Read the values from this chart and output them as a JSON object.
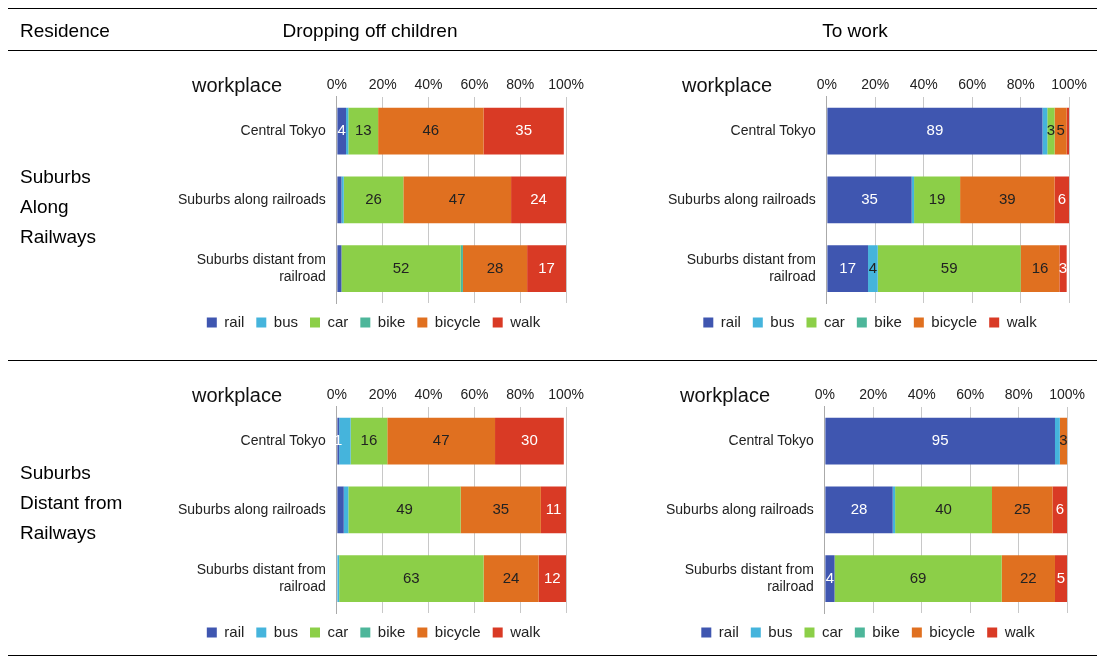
{
  "chart_data": [
    {
      "type": "other",
      "annotations": [
        "Residence",
        "Dropping off children",
        "To work",
        "Suburbs Along Railways",
        "Suburbs Distant from Railways"
      ]
    },
    {
      "type": "bar",
      "orientation": "horizontal",
      "stacked": true,
      "ylabel": "workplace",
      "categories": [
        "Central Tokyo",
        "Suburbs along railroads",
        "Suburbs distant from railroad"
      ],
      "xlim": [
        0,
        100
      ],
      "xticks": [
        {
          "value": 0,
          "label": "0%"
        },
        {
          "value": 20,
          "label": "20%"
        },
        {
          "value": 40,
          "label": "40%"
        },
        {
          "value": 60,
          "label": "60%"
        },
        {
          "value": 80,
          "label": "80%"
        },
        {
          "value": 100,
          "label": "100%"
        }
      ],
      "grid": "x",
      "legend": "bottom",
      "series": [
        {
          "name": "rail",
          "color": "#3f56b0",
          "values": [
            4,
            2,
            2
          ],
          "value_labels": [
            "4",
            null,
            null
          ]
        },
        {
          "name": "bus",
          "color": "#45b4dc",
          "values": [
            1,
            1,
            0
          ],
          "value_labels": [
            null,
            null,
            null
          ]
        },
        {
          "name": "car",
          "color": "#8ccf48",
          "values": [
            13,
            26,
            52
          ],
          "value_labels": [
            "13",
            "26",
            "52"
          ]
        },
        {
          "name": "bike",
          "color": "#4db69a",
          "values": [
            0,
            0,
            1
          ],
          "value_labels": [
            null,
            null,
            null
          ]
        },
        {
          "name": "bicycle",
          "color": "#e07020",
          "values": [
            46,
            47,
            28
          ],
          "value_labels": [
            "46",
            "47",
            "28"
          ]
        },
        {
          "name": "walk",
          "color": "#d93a25",
          "values": [
            35,
            24,
            17
          ],
          "value_labels": [
            "35",
            "24",
            "17"
          ]
        }
      ]
    },
    {
      "type": "bar",
      "orientation": "horizontal",
      "stacked": true,
      "ylabel": "workplace",
      "categories": [
        "Central Tokyo",
        "Suburbs along railroads",
        "Suburbs distant from railroad"
      ],
      "xlim": [
        0,
        100
      ],
      "xticks": [
        {
          "value": 0,
          "label": "0%"
        },
        {
          "value": 20,
          "label": "20%"
        },
        {
          "value": 40,
          "label": "40%"
        },
        {
          "value": 60,
          "label": "60%"
        },
        {
          "value": 80,
          "label": "80%"
        },
        {
          "value": 100,
          "label": "100%"
        }
      ],
      "grid": "x",
      "legend": "bottom",
      "series": [
        {
          "name": "rail",
          "color": "#3f56b0",
          "values": [
            89,
            35,
            17
          ],
          "value_labels": [
            "89",
            "35",
            "17"
          ]
        },
        {
          "name": "bus",
          "color": "#45b4dc",
          "values": [
            2,
            1,
            4
          ],
          "value_labels": [
            null,
            null,
            "4"
          ]
        },
        {
          "name": "car",
          "color": "#8ccf48",
          "values": [
            3,
            19,
            59
          ],
          "value_labels": [
            "3",
            "19",
            "59"
          ]
        },
        {
          "name": "bike",
          "color": "#4db69a",
          "values": [
            0,
            0,
            0
          ],
          "value_labels": [
            null,
            null,
            null
          ]
        },
        {
          "name": "bicycle",
          "color": "#e07020",
          "values": [
            5,
            39,
            16
          ],
          "value_labels": [
            "5",
            "39",
            "16"
          ]
        },
        {
          "name": "walk",
          "color": "#d93a25",
          "values": [
            1,
            6,
            3
          ],
          "value_labels": [
            null,
            "6",
            "3"
          ]
        }
      ]
    },
    {
      "type": "bar",
      "orientation": "horizontal",
      "stacked": true,
      "ylabel": "workplace",
      "categories": [
        "Central Tokyo",
        "Suburbs along railroads",
        "Suburbs distant from railroad"
      ],
      "xlim": [
        0,
        100
      ],
      "xticks": [
        {
          "value": 0,
          "label": "0%"
        },
        {
          "value": 20,
          "label": "20%"
        },
        {
          "value": 40,
          "label": "40%"
        },
        {
          "value": 60,
          "label": "60%"
        },
        {
          "value": 80,
          "label": "80%"
        },
        {
          "value": 100,
          "label": "100%"
        }
      ],
      "grid": "x",
      "legend": "bottom",
      "series": [
        {
          "name": "rail",
          "color": "#3f56b0",
          "values": [
            1,
            3,
            0
          ],
          "value_labels": [
            "1",
            null,
            null
          ]
        },
        {
          "name": "bus",
          "color": "#45b4dc",
          "values": [
            5,
            2,
            1
          ],
          "value_labels": [
            null,
            null,
            null
          ]
        },
        {
          "name": "car",
          "color": "#8ccf48",
          "values": [
            16,
            49,
            63
          ],
          "value_labels": [
            "16",
            "49",
            "63"
          ]
        },
        {
          "name": "bike",
          "color": "#4db69a",
          "values": [
            0,
            0,
            0
          ],
          "value_labels": [
            null,
            null,
            null
          ]
        },
        {
          "name": "bicycle",
          "color": "#e07020",
          "values": [
            47,
            35,
            24
          ],
          "value_labels": [
            "47",
            "35",
            "24"
          ]
        },
        {
          "name": "walk",
          "color": "#d93a25",
          "values": [
            30,
            11,
            12
          ],
          "value_labels": [
            "30",
            "11",
            "12"
          ]
        }
      ]
    },
    {
      "type": "bar",
      "orientation": "horizontal",
      "stacked": true,
      "ylabel": "workplace",
      "categories": [
        "Central Tokyo",
        "Suburbs along railroads",
        "Suburbs distant from railroad"
      ],
      "xlim": [
        0,
        100
      ],
      "xticks": [
        {
          "value": 0,
          "label": "0%"
        },
        {
          "value": 20,
          "label": "20%"
        },
        {
          "value": 40,
          "label": "40%"
        },
        {
          "value": 60,
          "label": "60%"
        },
        {
          "value": 80,
          "label": "80%"
        },
        {
          "value": 100,
          "label": "100%"
        }
      ],
      "grid": "x",
      "legend": "bottom",
      "series": [
        {
          "name": "rail",
          "color": "#3f56b0",
          "values": [
            95,
            28,
            4
          ],
          "value_labels": [
            "95",
            "28",
            "4"
          ]
        },
        {
          "name": "bus",
          "color": "#45b4dc",
          "values": [
            2,
            1,
            0
          ],
          "value_labels": [
            null,
            null,
            null
          ]
        },
        {
          "name": "car",
          "color": "#8ccf48",
          "values": [
            0,
            40,
            69
          ],
          "value_labels": [
            null,
            "40",
            "69"
          ]
        },
        {
          "name": "bike",
          "color": "#4db69a",
          "values": [
            0,
            0,
            0
          ],
          "value_labels": [
            null,
            null,
            null
          ]
        },
        {
          "name": "bicycle",
          "color": "#e07020",
          "values": [
            3,
            25,
            22
          ],
          "value_labels": [
            "3",
            "25",
            "22"
          ]
        },
        {
          "name": "walk",
          "color": "#d93a25",
          "values": [
            0,
            6,
            5
          ],
          "value_labels": [
            null,
            "6",
            "5"
          ]
        }
      ]
    }
  ]
}
